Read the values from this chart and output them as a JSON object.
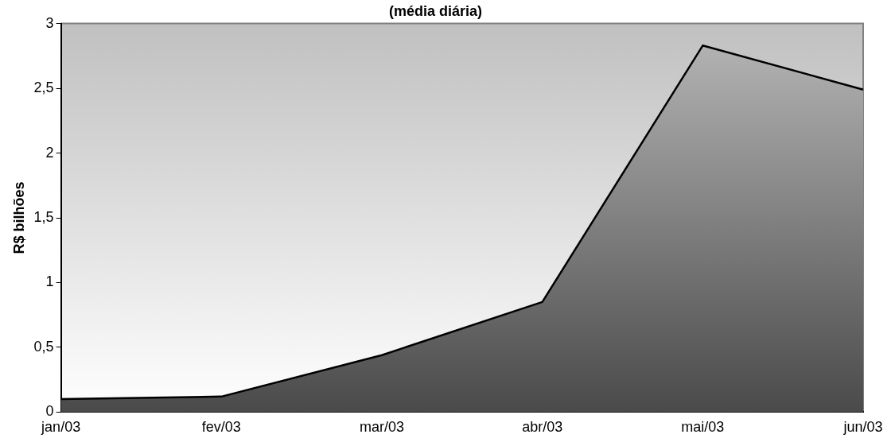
{
  "chart_data": {
    "type": "area",
    "title": "(média diária)",
    "ylabel": "R$ bilhões",
    "categories": [
      "jan/03",
      "fev/03",
      "mar/03",
      "abr/03",
      "mai/03",
      "jun/03"
    ],
    "series": [
      {
        "color": "#000000",
        "values": [
          0.1,
          0.12,
          0.44,
          0.85,
          2.83,
          2.49
        ]
      }
    ],
    "ylim": [
      0,
      3
    ],
    "yticks": [
      0,
      {
        "value": 0.5,
        "label": "0,5"
      },
      1,
      {
        "value": 1.5,
        "label": "1,5"
      },
      2,
      {
        "value": 2.5,
        "label": "2,5"
      },
      3
    ],
    "grid": false,
    "legend": false,
    "marker": "none",
    "line_style": "solid"
  }
}
